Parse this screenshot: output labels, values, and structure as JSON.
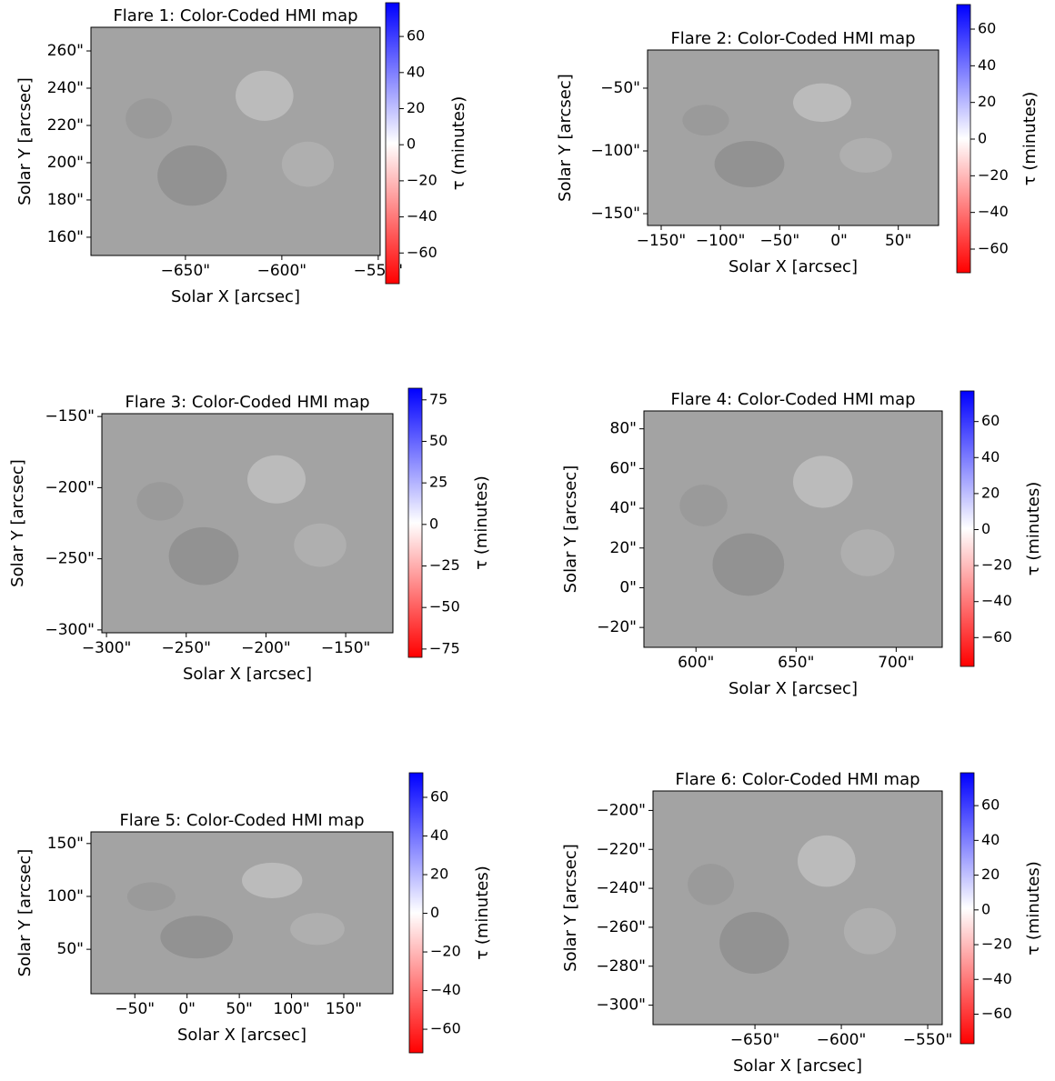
{
  "chart_data": [
    {
      "type": "map",
      "title": "Flare 1: Color-Coded HMI map",
      "xlabel": "Solar X [arcsec]",
      "ylabel": "Solar Y [arcsec]",
      "xlim": [
        -699,
        -549
      ],
      "ylim": [
        150.2,
        272.7
      ],
      "xticks": [
        {
          "value": -650,
          "label": "−650\""
        },
        {
          "value": -600,
          "label": "−600\""
        },
        {
          "value": -550,
          "label": "−550\""
        }
      ],
      "yticks": [
        {
          "value": 160,
          "label": "160\""
        },
        {
          "value": 180,
          "label": "180\""
        },
        {
          "value": 200,
          "label": "200\""
        },
        {
          "value": 220,
          "label": "220\""
        },
        {
          "value": 240,
          "label": "240\""
        },
        {
          "value": 260,
          "label": "260\""
        }
      ],
      "colorbar_label": "τ (minutes)",
      "clim": [
        -77,
        78.7
      ],
      "cticks": [
        {
          "value": -60,
          "label": "−60"
        },
        {
          "value": -40,
          "label": "−40"
        },
        {
          "value": -20,
          "label": "−20"
        },
        0,
        20,
        40,
        60
      ],
      "colormap": [
        "#ff0000",
        "#ffffff",
        "#0000ff"
      ]
    },
    {
      "type": "map",
      "title": "Flare 2: Color-Coded HMI map",
      "xlabel": "Solar X [arcsec]",
      "ylabel": "Solar Y [arcsec]",
      "xlim": [
        -161.5,
        84
      ],
      "ylim": [
        -159.4,
        -19.6
      ],
      "xticks": [
        {
          "value": -150,
          "label": "−150\""
        },
        {
          "value": -100,
          "label": "−100\""
        },
        {
          "value": -50,
          "label": "−50\""
        },
        {
          "value": 0,
          "label": "0\""
        },
        {
          "value": 50,
          "label": "50\""
        }
      ],
      "yticks": [
        {
          "value": -150,
          "label": "−150\""
        },
        {
          "value": -100,
          "label": "−100\""
        },
        {
          "value": -50,
          "label": "−50\""
        }
      ],
      "colorbar_label": "τ (minutes)",
      "clim": [
        -72.9,
        73.4
      ],
      "cticks": [
        {
          "value": -60,
          "label": "−60"
        },
        {
          "value": -40,
          "label": "−40"
        },
        {
          "value": -20,
          "label": "−20"
        },
        0,
        20,
        40,
        60
      ],
      "colormap": [
        "#ff0000",
        "#ffffff",
        "#0000ff"
      ]
    },
    {
      "type": "map",
      "title": "Flare 3: Color-Coded HMI map",
      "xlabel": "Solar X [arcsec]",
      "ylabel": "Solar Y [arcsec]",
      "xlim": [
        -302.9,
        -120.4
      ],
      "ylim": [
        -302,
        -148
      ],
      "xticks": [
        {
          "value": -300,
          "label": "−300\""
        },
        {
          "value": -250,
          "label": "−250\""
        },
        {
          "value": -200,
          "label": "−200\""
        },
        {
          "value": -150,
          "label": "−150\""
        }
      ],
      "yticks": [
        {
          "value": -300,
          "label": "−300\""
        },
        {
          "value": -250,
          "label": "−250\""
        },
        {
          "value": -200,
          "label": "−200\""
        },
        {
          "value": -150,
          "label": "−150\""
        }
      ],
      "colorbar_label": "τ (minutes)",
      "clim": [
        -80,
        82
      ],
      "cticks": [
        {
          "value": -75,
          "label": "−75"
        },
        {
          "value": -50,
          "label": "−50"
        },
        {
          "value": -25,
          "label": "−25"
        },
        0,
        25,
        50,
        75
      ],
      "colormap": [
        "#ff0000",
        "#ffffff",
        "#0000ff"
      ]
    },
    {
      "type": "map",
      "title": "Flare 4: Color-Coded HMI map",
      "xlabel": "Solar X [arcsec]",
      "ylabel": "Solar Y [arcsec]",
      "xlim": [
        574,
        723
      ],
      "ylim": [
        -30,
        89
      ],
      "xticks": [
        {
          "value": 600,
          "label": "600\""
        },
        {
          "value": 650,
          "label": "650\""
        },
        {
          "value": 700,
          "label": "700\""
        }
      ],
      "yticks": [
        {
          "value": -20,
          "label": "−20\""
        },
        {
          "value": 0,
          "label": "0\""
        },
        {
          "value": 20,
          "label": "20\""
        },
        {
          "value": 40,
          "label": "40\""
        },
        {
          "value": 60,
          "label": "60\""
        },
        {
          "value": 80,
          "label": "80\""
        }
      ],
      "colorbar_label": "τ (minutes)",
      "clim": [
        -76,
        77
      ],
      "cticks": [
        {
          "value": -60,
          "label": "−60"
        },
        {
          "value": -40,
          "label": "−40"
        },
        {
          "value": -20,
          "label": "−20"
        },
        0,
        20,
        40,
        60
      ],
      "colormap": [
        "#ff0000",
        "#ffffff",
        "#0000ff"
      ]
    },
    {
      "type": "map",
      "title": "Flare 5: Color-Coded HMI map",
      "xlabel": "Solar X [arcsec]",
      "ylabel": "Solar Y [arcsec]",
      "xlim": [
        -92,
        197
      ],
      "ylim": [
        8,
        161
      ],
      "xticks": [
        {
          "value": -50,
          "label": "−50\""
        },
        {
          "value": 0,
          "label": "0\""
        },
        {
          "value": 50,
          "label": "50\""
        },
        {
          "value": 100,
          "label": "100\""
        },
        {
          "value": 150,
          "label": "150\""
        }
      ],
      "yticks": [
        {
          "value": 50,
          "label": "50\""
        },
        {
          "value": 100,
          "label": "100\""
        },
        {
          "value": 150,
          "label": "150\""
        }
      ],
      "colorbar_label": "τ (minutes)",
      "clim": [
        -72.2,
        72.7
      ],
      "cticks": [
        {
          "value": -60,
          "label": "−60"
        },
        {
          "value": -40,
          "label": "−40"
        },
        {
          "value": -20,
          "label": "−20"
        },
        0,
        20,
        40,
        60
      ],
      "colormap": [
        "#ff0000",
        "#ffffff",
        "#0000ff"
      ]
    },
    {
      "type": "map",
      "title": "Flare 6: Color-Coded HMI map",
      "xlabel": "Solar X [arcsec]",
      "ylabel": "Solar Y [arcsec]",
      "xlim": [
        -709,
        -541.6
      ],
      "ylim": [
        -310,
        -190
      ],
      "xticks": [
        {
          "value": -650,
          "label": "−650\""
        },
        {
          "value": -600,
          "label": "−600\""
        },
        {
          "value": -550,
          "label": "−550\""
        }
      ],
      "yticks": [
        {
          "value": -300,
          "label": "−300\""
        },
        {
          "value": -280,
          "label": "−280\""
        },
        {
          "value": -260,
          "label": "−260\""
        },
        {
          "value": -240,
          "label": "−240\""
        },
        {
          "value": -220,
          "label": "−220\""
        },
        {
          "value": -200,
          "label": "−200\""
        }
      ],
      "colorbar_label": "τ (minutes)",
      "clim": [
        -77,
        78.9
      ],
      "cticks": [
        {
          "value": -60,
          "label": "−60"
        },
        {
          "value": -40,
          "label": "−40"
        },
        {
          "value": -20,
          "label": "−20"
        },
        0,
        20,
        40,
        60
      ],
      "colormap": [
        "#ff0000",
        "#ffffff",
        "#0000ff"
      ]
    }
  ]
}
